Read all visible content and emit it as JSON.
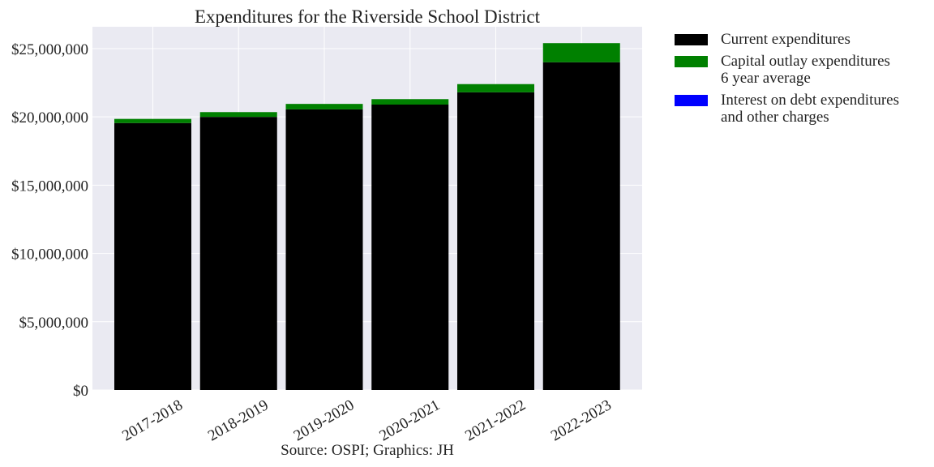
{
  "chart_data": {
    "type": "bar",
    "stacked": true,
    "title": "Expenditures for the Riverside School District",
    "source": "Source: OSPI; Graphics: JH",
    "categories": [
      "2017-2018",
      "2018-2019",
      "2019-2020",
      "2020-2021",
      "2021-2022",
      "2022-2023"
    ],
    "series": [
      {
        "name": "Current expenditures",
        "color": "#000000",
        "values": [
          19550000,
          20000000,
          20550000,
          20900000,
          21800000,
          24000000
        ]
      },
      {
        "name": "Capital outlay expenditures",
        "color": "#008000",
        "values": [
          300000,
          350000,
          400000,
          400000,
          600000,
          1400000
        ]
      },
      {
        "name": "Interest on debt expenditures",
        "color": "#0000ff",
        "values": [
          0,
          0,
          0,
          0,
          0,
          0
        ]
      }
    ],
    "ylim": [
      0,
      26600000
    ],
    "yticks": [
      0,
      5000000,
      10000000,
      15000000,
      20000000,
      25000000
    ],
    "ytick_labels": [
      "$0",
      "$5,000,000",
      "$10,000,000",
      "$15,000,000",
      "$20,000,000",
      "$25,000,000"
    ],
    "grid": true,
    "legend_position": "outside-right"
  },
  "legend": {
    "items": [
      {
        "line1": "Current expenditures",
        "line2": "",
        "color": "#000000"
      },
      {
        "line1": "Capital outlay expenditures",
        "line2": "6 year average",
        "color": "#008000"
      },
      {
        "line1": "Interest on debt expenditures",
        "line2": "and other charges",
        "color": "#0000ff"
      }
    ]
  }
}
